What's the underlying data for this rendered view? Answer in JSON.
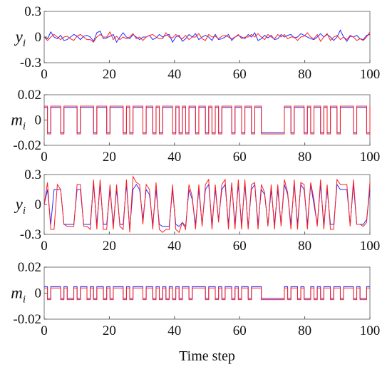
{
  "chart_data": [
    {
      "type": "line",
      "ylabel": "y",
      "ylabel_sub": "i",
      "xlim": [
        0,
        100
      ],
      "ylim": [
        -0.3,
        0.3
      ],
      "xticks": [
        "0",
        "20",
        "40",
        "60",
        "80",
        "100"
      ],
      "yticks": [
        "0.3",
        "0",
        "-0.3"
      ],
      "ytick_values": [
        0.3,
        0,
        -0.3
      ],
      "style": "line",
      "series": [
        {
          "color": "#1f2bff",
          "values": [
            0.0,
            -0.02,
            0.06,
            0.0,
            -0.02,
            0.02,
            -0.04,
            -0.03,
            0.0,
            0.03,
            0.01,
            -0.03,
            0.01,
            0.02,
            0.0,
            -0.05,
            0.05,
            0.07,
            -0.02,
            -0.01,
            0.01,
            0.03,
            -0.06,
            0.0,
            0.05,
            0.0,
            -0.02,
            0.03,
            0.0,
            -0.03,
            0.0,
            0.0,
            0.02,
            -0.03,
            -0.01,
            0.03,
            0.0,
            0.02,
            0.03,
            -0.06,
            0.0,
            0.02,
            -0.05,
            -0.02,
            0.03,
            0.0,
            0.04,
            -0.03,
            0.0,
            0.02,
            0.0,
            -0.04,
            0.03,
            -0.03,
            -0.02,
            0.0,
            0.03,
            -0.04,
            0.0,
            0.02,
            0.0,
            -0.02,
            0.03,
            0.0,
            0.05,
            -0.04,
            -0.02,
            0.02,
            -0.01,
            0.02,
            -0.03,
            -0.02,
            0.03,
            0.0,
            0.02,
            0.03,
            -0.01,
            0.0,
            0.04,
            0.02,
            0.0,
            -0.02,
            -0.03,
            0.0,
            0.04,
            0.0,
            0.03,
            0.0,
            -0.04,
            0.0,
            0.08,
            0.0,
            -0.05,
            0.01,
            0.0,
            0.02,
            -0.02,
            -0.03,
            0.02,
            0.03
          ]
        },
        {
          "color": "#ff1f1f",
          "values": [
            0.0,
            -0.04,
            0.0,
            0.03,
            0.0,
            -0.03,
            0.0,
            0.01,
            -0.02,
            -0.04,
            0.01,
            0.03,
            0.0,
            -0.03,
            -0.03,
            -0.06,
            0.0,
            0.03,
            0.0,
            0.0,
            0.06,
            -0.03,
            0.01,
            -0.03,
            0.0,
            -0.02,
            0.0,
            0.04,
            -0.02,
            0.0,
            -0.04,
            0.0,
            0.02,
            0.03,
            0.0,
            -0.02,
            -0.02,
            0.05,
            0.0,
            -0.01,
            0.03,
            0.0,
            -0.02,
            0.02,
            -0.03,
            0.0,
            0.0,
            0.04,
            -0.02,
            -0.04,
            0.03,
            0.0,
            0.01,
            -0.02,
            0.01,
            0.02,
            0.0,
            -0.02,
            0.0,
            0.03,
            -0.02,
            0.0,
            0.0,
            0.03,
            0.0,
            0.04,
            0.0,
            -0.03,
            0.03,
            0.0,
            -0.02,
            0.03,
            0.0,
            0.03,
            -0.02,
            0.0,
            0.0,
            -0.04,
            0.0,
            0.01,
            0.05,
            0.0,
            -0.02,
            0.03,
            -0.05,
            0.0,
            0.04,
            -0.04,
            0.0,
            0.02,
            -0.03,
            0.0,
            -0.03,
            0.02,
            0.0,
            -0.04,
            -0.02,
            -0.04,
            0.0,
            0.06
          ]
        }
      ]
    },
    {
      "type": "line",
      "ylabel": "m",
      "ylabel_sub": "i",
      "xlim": [
        0,
        100
      ],
      "ylim": [
        -0.02,
        0.02
      ],
      "xticks": [
        "0",
        "20",
        "40",
        "60",
        "80",
        "100"
      ],
      "yticks": [
        "0.02",
        "0",
        "-0.02"
      ],
      "ytick_values": [
        0.02,
        0,
        -0.02
      ],
      "style": "step",
      "series": [
        {
          "color": "#1f2bff",
          "values": [
            0.01,
            -0.01,
            0.01,
            0.01,
            0.01,
            -0.01,
            0.01,
            0.01,
            0.01,
            0.01,
            -0.01,
            0.01,
            0.01,
            0.01,
            0.01,
            -0.01,
            0.01,
            0.01,
            0.01,
            -0.01,
            0.01,
            0.01,
            0.01,
            0.01,
            -0.01,
            0.01,
            -0.01,
            0.01,
            0.01,
            0.01,
            -0.01,
            0.01,
            0.01,
            -0.01,
            0.01,
            -0.01,
            0.01,
            0.01,
            0.01,
            -0.01,
            0.01,
            -0.01,
            0.01,
            -0.01,
            0.01,
            0.01,
            -0.01,
            0.01,
            0.01,
            -0.01,
            0.01,
            -0.01,
            0.01,
            -0.01,
            0.01,
            0.01,
            0.01,
            -0.01,
            0.01,
            0.01,
            -0.01,
            0.01,
            0.01,
            -0.01,
            0.01,
            0.01,
            -0.01,
            -0.01,
            -0.01,
            -0.01,
            -0.01,
            -0.01,
            -0.01,
            0.01,
            0.01,
            -0.01,
            0.01,
            0.01,
            0.01,
            -0.01,
            0.01,
            -0.01,
            0.01,
            0.01,
            -0.01,
            0.01,
            -0.01,
            0.01,
            0.01,
            -0.01,
            0.01,
            0.01,
            0.01,
            0.01,
            -0.01,
            0.01,
            0.01,
            0.01,
            -0.01,
            0.01
          ]
        },
        {
          "color": "#ff1f1f",
          "values": [
            0.011,
            -0.011,
            0.011,
            0.011,
            0.011,
            -0.011,
            0.011,
            0.011,
            0.011,
            0.011,
            -0.011,
            0.011,
            0.011,
            0.011,
            0.011,
            -0.011,
            0.011,
            0.011,
            0.011,
            -0.011,
            0.011,
            0.011,
            0.011,
            0.011,
            -0.011,
            0.011,
            -0.011,
            0.011,
            0.011,
            0.011,
            -0.011,
            0.011,
            0.011,
            -0.011,
            0.011,
            -0.011,
            0.011,
            0.011,
            0.011,
            -0.011,
            0.011,
            -0.011,
            0.011,
            -0.011,
            0.011,
            0.011,
            -0.011,
            0.011,
            0.011,
            -0.011,
            0.011,
            -0.011,
            0.011,
            -0.011,
            0.011,
            0.011,
            0.011,
            -0.011,
            0.011,
            0.011,
            -0.011,
            0.011,
            0.011,
            -0.011,
            0.011,
            0.011,
            -0.011,
            -0.011,
            -0.011,
            -0.011,
            -0.011,
            -0.011,
            -0.011,
            0.011,
            0.011,
            -0.011,
            0.011,
            0.011,
            0.011,
            -0.011,
            0.011,
            -0.011,
            0.011,
            0.011,
            -0.011,
            0.011,
            -0.011,
            0.011,
            0.011,
            -0.011,
            0.011,
            0.011,
            0.011,
            0.011,
            -0.011,
            0.011,
            0.011,
            0.011,
            -0.011,
            0.011
          ]
        }
      ]
    },
    {
      "type": "line",
      "ylabel": "y",
      "ylabel_sub": "i",
      "xlim": [
        0,
        100
      ],
      "ylim": [
        -0.3,
        0.3
      ],
      "xticks": [
        "0",
        "20",
        "40",
        "60",
        "80",
        "100"
      ],
      "yticks": [
        "0.3",
        "0",
        "-0.3"
      ],
      "ytick_values": [
        0.3,
        0,
        -0.3
      ],
      "style": "line",
      "series": [
        {
          "color": "#1f2bff",
          "values": [
            0.0,
            0.15,
            -0.2,
            0.15,
            0.15,
            0.15,
            -0.2,
            -0.2,
            -0.2,
            -0.2,
            0.15,
            0.15,
            -0.2,
            -0.2,
            -0.2,
            0.2,
            -0.2,
            0.2,
            -0.2,
            -0.2,
            0.15,
            -0.2,
            0.15,
            -0.2,
            -0.2,
            0.2,
            -0.25,
            0.15,
            0.2,
            0.15,
            -0.15,
            0.15,
            0.1,
            -0.2,
            0.15,
            -0.2,
            -0.22,
            -0.22,
            -0.22,
            0.15,
            -0.2,
            -0.22,
            -0.18,
            -0.22,
            0.15,
            0.05,
            -0.2,
            0.15,
            -0.2,
            0.15,
            0.2,
            -0.2,
            0.15,
            -0.15,
            0.15,
            0.2,
            -0.2,
            0.2,
            -0.2,
            0.2,
            -0.2,
            0.2,
            -0.22,
            0.15,
            0.2,
            -0.2,
            0.15,
            0.1,
            -0.2,
            0.15,
            -0.2,
            0.15,
            -0.2,
            0.2,
            0.1,
            -0.2,
            0.2,
            -0.2,
            0.2,
            0.15,
            -0.2,
            0.2,
            0.0,
            -0.2,
            0.2,
            -0.2,
            0.15,
            -0.2,
            -0.2,
            0.2,
            0.15,
            0.15,
            0.15,
            -0.2,
            0.2,
            -0.2,
            -0.2,
            -0.2,
            -0.15,
            0.15
          ]
        },
        {
          "color": "#ff1f1f",
          "values": [
            0.0,
            0.22,
            -0.25,
            -0.25,
            0.2,
            0.15,
            -0.2,
            -0.22,
            -0.22,
            -0.22,
            0.2,
            0.2,
            -0.22,
            -0.22,
            -0.25,
            0.25,
            -0.25,
            0.25,
            -0.25,
            -0.25,
            0.2,
            -0.25,
            0.2,
            -0.22,
            -0.25,
            0.25,
            -0.28,
            0.28,
            0.22,
            0.2,
            -0.2,
            0.2,
            0.15,
            -0.25,
            0.22,
            -0.25,
            -0.28,
            -0.25,
            -0.25,
            0.2,
            -0.25,
            -0.28,
            -0.18,
            -0.25,
            0.2,
            0.08,
            -0.25,
            0.2,
            -0.22,
            0.2,
            0.25,
            -0.25,
            0.2,
            -0.18,
            0.2,
            0.25,
            -0.25,
            0.22,
            -0.25,
            0.25,
            -0.25,
            0.25,
            -0.25,
            0.2,
            0.22,
            -0.25,
            0.2,
            0.12,
            -0.22,
            0.2,
            -0.25,
            0.2,
            -0.22,
            0.25,
            0.12,
            -0.25,
            0.25,
            -0.25,
            0.22,
            0.2,
            -0.25,
            0.22,
            0.05,
            -0.22,
            0.25,
            -0.25,
            0.2,
            -0.25,
            -0.25,
            0.25,
            0.2,
            0.2,
            0.2,
            -0.22,
            0.25,
            -0.2,
            -0.2,
            -0.22,
            -0.18,
            0.22
          ]
        }
      ]
    },
    {
      "type": "line",
      "ylabel": "m",
      "ylabel_sub": "i",
      "xlim": [
        0,
        100
      ],
      "ylim": [
        -0.02,
        0.02
      ],
      "xticks": [
        "0",
        "20",
        "40",
        "60",
        "80",
        "100"
      ],
      "yticks": [
        "0.02",
        "0",
        "-0.02"
      ],
      "ytick_values": [
        0.02,
        0,
        -0.02
      ],
      "xlabel": "Time step",
      "style": "step",
      "series": [
        {
          "color": "#1f2bff",
          "values": [
            0.005,
            -0.004,
            0.005,
            0.005,
            0.005,
            -0.004,
            0.005,
            -0.004,
            -0.004,
            0.005,
            -0.004,
            0.005,
            0.005,
            -0.004,
            0.005,
            -0.004,
            0.005,
            0.005,
            -0.004,
            0.005,
            -0.004,
            0.005,
            0.005,
            0.005,
            -0.004,
            0.005,
            -0.004,
            0.005,
            0.005,
            0.005,
            -0.004,
            0.005,
            0.005,
            -0.004,
            0.005,
            -0.004,
            0.005,
            -0.004,
            0.005,
            -0.004,
            0.005,
            -0.004,
            0.005,
            0.005,
            -0.004,
            0.005,
            0.005,
            0.005,
            0.005,
            -0.004,
            0.005,
            0.005,
            -0.004,
            0.005,
            -0.004,
            0.005,
            0.005,
            -0.004,
            0.005,
            -0.004,
            0.005,
            0.005,
            -0.004,
            0.005,
            0.005,
            0.005,
            -0.004,
            -0.004,
            -0.004,
            -0.004,
            -0.004,
            -0.004,
            -0.004,
            0.005,
            -0.004,
            0.005,
            0.005,
            -0.004,
            0.005,
            -0.004,
            -0.004,
            0.005,
            -0.004,
            0.005,
            -0.004,
            0.005,
            0.005,
            -0.004,
            0.005,
            0.005,
            -0.004,
            0.005,
            0.005,
            0.005,
            -0.004,
            0.005,
            -0.004,
            -0.004,
            0.005,
            0.005
          ]
        },
        {
          "color": "#ff1f1f",
          "values": [
            0.004,
            -0.005,
            0.004,
            0.004,
            0.004,
            -0.005,
            0.004,
            -0.005,
            -0.005,
            0.004,
            -0.005,
            0.004,
            0.004,
            -0.005,
            0.004,
            -0.005,
            0.004,
            0.004,
            -0.005,
            0.004,
            -0.005,
            0.004,
            0.004,
            0.004,
            -0.005,
            0.004,
            -0.005,
            0.004,
            0.004,
            0.004,
            -0.005,
            0.004,
            0.004,
            -0.005,
            0.004,
            -0.005,
            0.004,
            -0.005,
            0.004,
            -0.005,
            0.004,
            -0.005,
            0.004,
            0.004,
            -0.005,
            0.004,
            0.004,
            0.004,
            0.004,
            -0.005,
            0.004,
            0.004,
            -0.005,
            0.004,
            -0.005,
            0.004,
            0.004,
            -0.005,
            0.004,
            -0.005,
            0.004,
            0.004,
            -0.005,
            0.004,
            0.004,
            0.004,
            -0.005,
            -0.005,
            -0.005,
            -0.005,
            -0.005,
            -0.005,
            -0.005,
            0.004,
            -0.005,
            0.004,
            0.004,
            -0.005,
            0.004,
            -0.005,
            -0.005,
            0.004,
            -0.005,
            0.004,
            -0.005,
            0.004,
            0.004,
            -0.005,
            0.004,
            0.004,
            -0.005,
            0.004,
            0.004,
            0.004,
            -0.005,
            0.004,
            -0.005,
            -0.005,
            0.004,
            0.004
          ]
        }
      ]
    }
  ]
}
